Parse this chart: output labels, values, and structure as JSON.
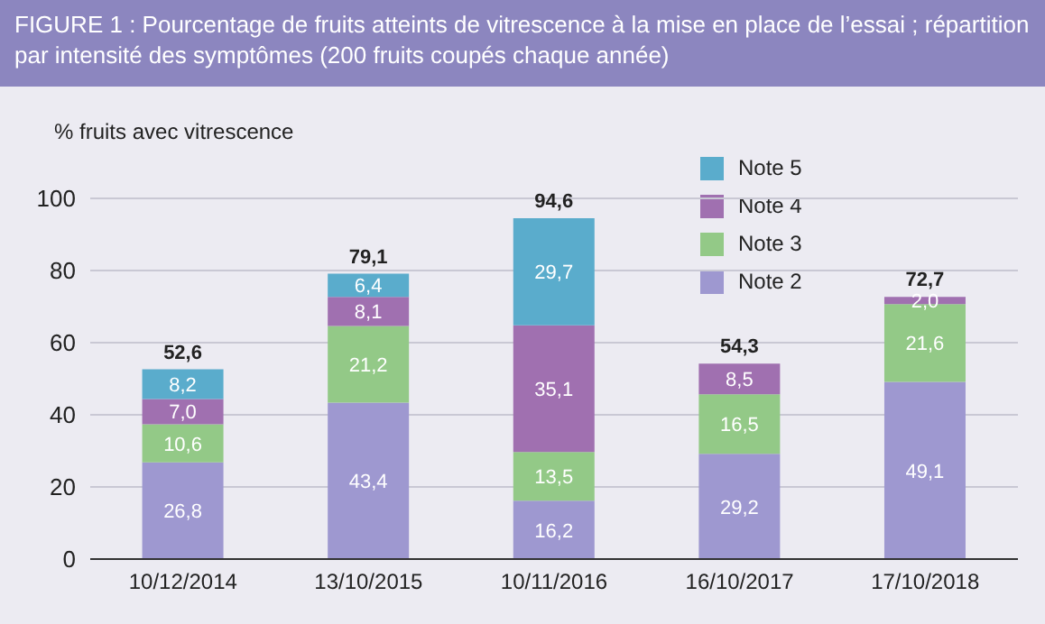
{
  "chart_data": {
    "type": "bar",
    "stacked": true,
    "title": "FIGURE 1 : Pourcentage de fruits atteints de vitrescence à la mise en place de l’essai ; répartition par intensité des symptômes (200 fruits coupés chaque année)",
    "ylabel": "% fruits avec vitrescence",
    "categories": [
      "10/12/2014",
      "13/10/2015",
      "10/11/2016",
      "16/10/2017",
      "17/10/2018"
    ],
    "series": [
      {
        "name": "Note 2",
        "color": "#9e98d0",
        "values": [
          26.8,
          43.4,
          16.2,
          29.2,
          49.1
        ],
        "value_labels": [
          "26,8",
          "43,4",
          "16,2",
          "29,2",
          "49,1"
        ]
      },
      {
        "name": "Note 3",
        "color": "#93c987",
        "values": [
          10.6,
          21.2,
          13.5,
          16.5,
          21.6
        ],
        "value_labels": [
          "10,6",
          "21,2",
          "13,5",
          "16,5",
          "21,6"
        ]
      },
      {
        "name": "Note 4",
        "color": "#a070b0",
        "values": [
          7.0,
          8.1,
          35.1,
          8.5,
          2.0
        ],
        "value_labels": [
          "7,0",
          "8,1",
          "35,1",
          "8,5",
          "2,0"
        ]
      },
      {
        "name": "Note 5",
        "color": "#5aaccc",
        "values": [
          8.2,
          6.4,
          29.7,
          null,
          null
        ],
        "value_labels": [
          "8,2",
          "6,4",
          "29,7",
          null,
          null
        ]
      }
    ],
    "totals": [
      "52,6",
      "79,1",
      "94,6",
      "54,3",
      "72,7"
    ],
    "ylim": [
      0,
      100
    ],
    "yticks": [
      0,
      20,
      40,
      60,
      80,
      100
    ],
    "grid": "y",
    "legend": "top right"
  }
}
